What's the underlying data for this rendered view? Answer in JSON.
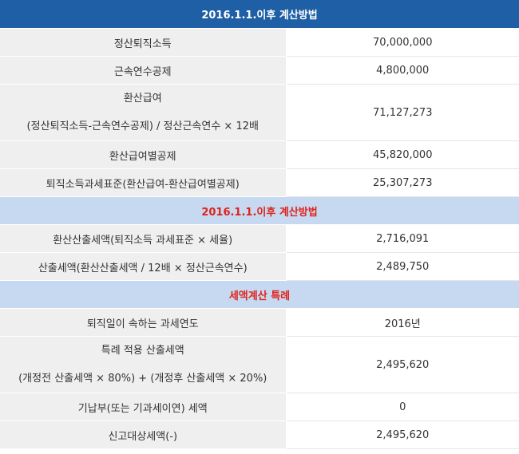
{
  "header": {
    "title": "2016.1.1.이후 계산방법"
  },
  "section1": {
    "rows": [
      {
        "label": "정산퇴직소득",
        "value": "70,000,000"
      },
      {
        "label": "근속연수공제",
        "value": "4,800,000"
      },
      {
        "label_line1": "환산급여",
        "label_line2": "(정산퇴직소득-근속연수공제) / 정산근속연수 × 12배",
        "value": "71,127,273"
      },
      {
        "label": "환산급여별공제",
        "value": "45,820,000"
      },
      {
        "label": "퇴직소득과세표준(환산급여-환산급여별공제)",
        "value": "25,307,273"
      }
    ]
  },
  "section2": {
    "title": "2016.1.1.이후 계산방법",
    "rows": [
      {
        "label": "환산산출세액(퇴직소득 과세표준 × 세율)",
        "value": "2,716,091"
      },
      {
        "label": "산출세액(환산산출세액 / 12배 × 정산근속연수)",
        "value": "2,489,750"
      }
    ]
  },
  "section3": {
    "title": "세액계산 특례",
    "rows": [
      {
        "label": "퇴직일이 속하는 과세연도",
        "value": "2016년"
      },
      {
        "label_line1": "특례 적용 산출세액",
        "label_line2": "(개정전 산출세액 × 80%) + (개정후 산출세액 × 20%)",
        "value": "2,495,620"
      },
      {
        "label": "기납부(또는 기과세이연) 세액",
        "value": "0"
      },
      {
        "label": "신고대상세액(-)",
        "value": "2,495,620"
      }
    ]
  }
}
